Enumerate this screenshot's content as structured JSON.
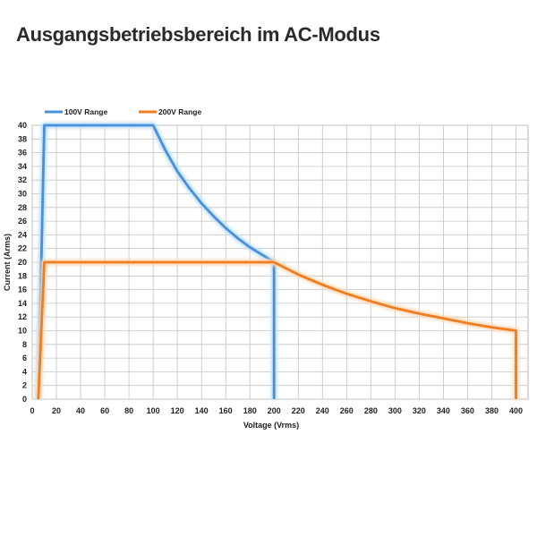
{
  "title": "Ausgangsbetriebsbereich im AC-Modus",
  "chart_data": {
    "type": "line",
    "title": "Ausgangsbetriebsbereich im AC-Modus",
    "xlabel": "Voltage (Vrms)",
    "ylabel": "Current (Arms)",
    "xlim": [
      0,
      410
    ],
    "ylim": [
      0,
      40
    ],
    "xticks": [
      0,
      20,
      40,
      60,
      80,
      100,
      120,
      140,
      160,
      180,
      200,
      220,
      240,
      260,
      280,
      300,
      320,
      340,
      360,
      380,
      400
    ],
    "yticks": [
      0,
      2,
      4,
      6,
      8,
      10,
      12,
      14,
      16,
      18,
      20,
      22,
      24,
      26,
      28,
      30,
      32,
      34,
      36,
      38,
      40
    ],
    "grid": true,
    "legend": "top-left",
    "series": [
      {
        "name": "100V Range",
        "color": "#4a90d9",
        "glow": "#bfe0f7",
        "x": [
          5,
          10,
          100,
          110,
          120,
          130,
          140,
          150,
          160,
          170,
          180,
          190,
          200,
          200
        ],
        "y": [
          0,
          40,
          40,
          36.4,
          33.3,
          30.8,
          28.6,
          26.7,
          25,
          23.5,
          22.2,
          21.1,
          20,
          0
        ]
      },
      {
        "name": "200V Range",
        "color": "#ef7d22",
        "glow": "#fbd9b8",
        "x": [
          5,
          10,
          200,
          220,
          240,
          260,
          280,
          300,
          320,
          340,
          360,
          380,
          400,
          400
        ],
        "y": [
          0,
          20,
          20,
          18.2,
          16.7,
          15.4,
          14.3,
          13.3,
          12.5,
          11.8,
          11.1,
          10.5,
          10,
          0
        ]
      }
    ]
  }
}
